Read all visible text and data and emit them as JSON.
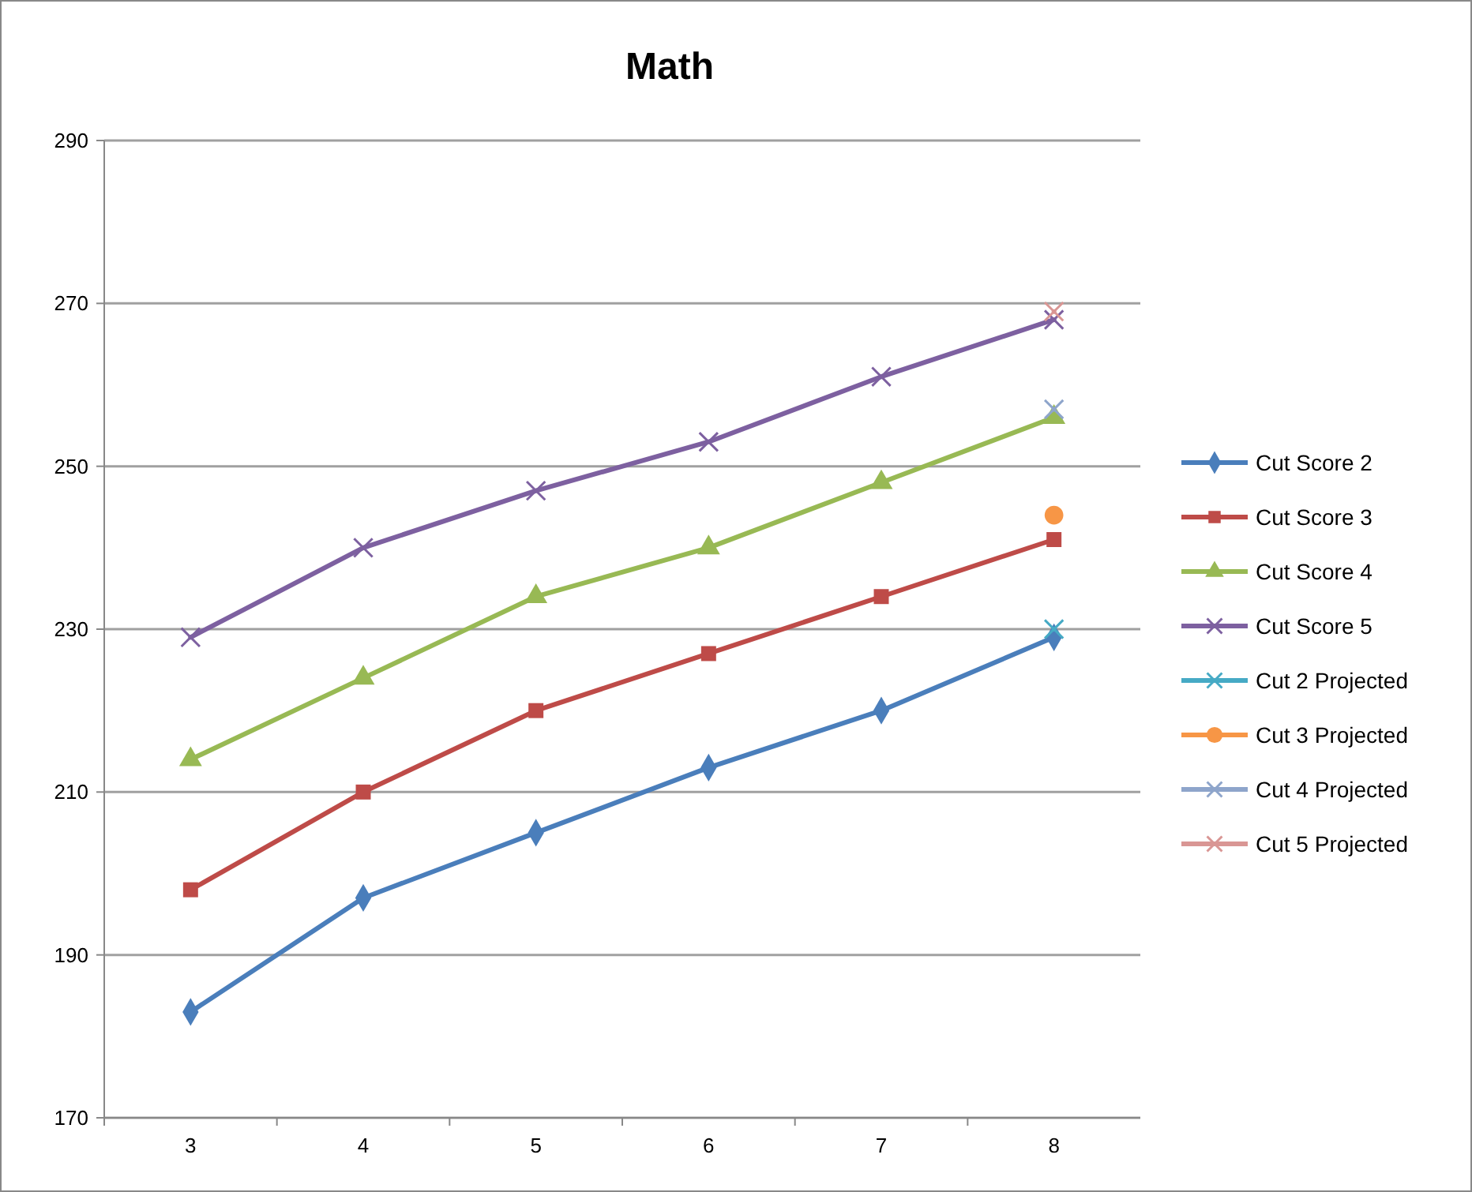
{
  "chart_data": {
    "type": "line",
    "title": "Math",
    "categories": [
      "3",
      "4",
      "5",
      "6",
      "7",
      "8"
    ],
    "series": [
      {
        "name": "Cut Score 2",
        "color": "#4a7ebb",
        "marker": "diamond",
        "values": [
          183,
          197,
          205,
          213,
          220,
          229
        ]
      },
      {
        "name": "Cut Score 3",
        "color": "#be4b48",
        "marker": "square",
        "values": [
          198,
          210,
          220,
          227,
          234,
          241
        ]
      },
      {
        "name": "Cut Score 4",
        "color": "#98b954",
        "marker": "triangle",
        "values": [
          214,
          224,
          234,
          240,
          248,
          256
        ]
      },
      {
        "name": "Cut Score 5",
        "color": "#7d60a0",
        "marker": "cross",
        "values": [
          229,
          240,
          247,
          253,
          261,
          268
        ]
      },
      {
        "name": "Cut 2 Projected",
        "color": "#46aac5",
        "marker": "cross",
        "values": [
          null,
          null,
          null,
          null,
          null,
          230
        ]
      },
      {
        "name": "Cut 3 Projected",
        "color": "#f79646",
        "marker": "circle",
        "values": [
          null,
          null,
          null,
          null,
          null,
          244
        ]
      },
      {
        "name": "Cut 4 Projected",
        "color": "#8ea5cb",
        "marker": "cross",
        "values": [
          null,
          null,
          null,
          null,
          null,
          257
        ]
      },
      {
        "name": "Cut 5 Projected",
        "color": "#d99694",
        "marker": "cross",
        "values": [
          null,
          null,
          null,
          null,
          null,
          269
        ]
      }
    ],
    "ylim": [
      170,
      290
    ],
    "yticks": [
      170,
      190,
      210,
      230,
      250,
      270,
      290
    ],
    "grid": "y",
    "legend": "right",
    "line_style": "solid"
  }
}
